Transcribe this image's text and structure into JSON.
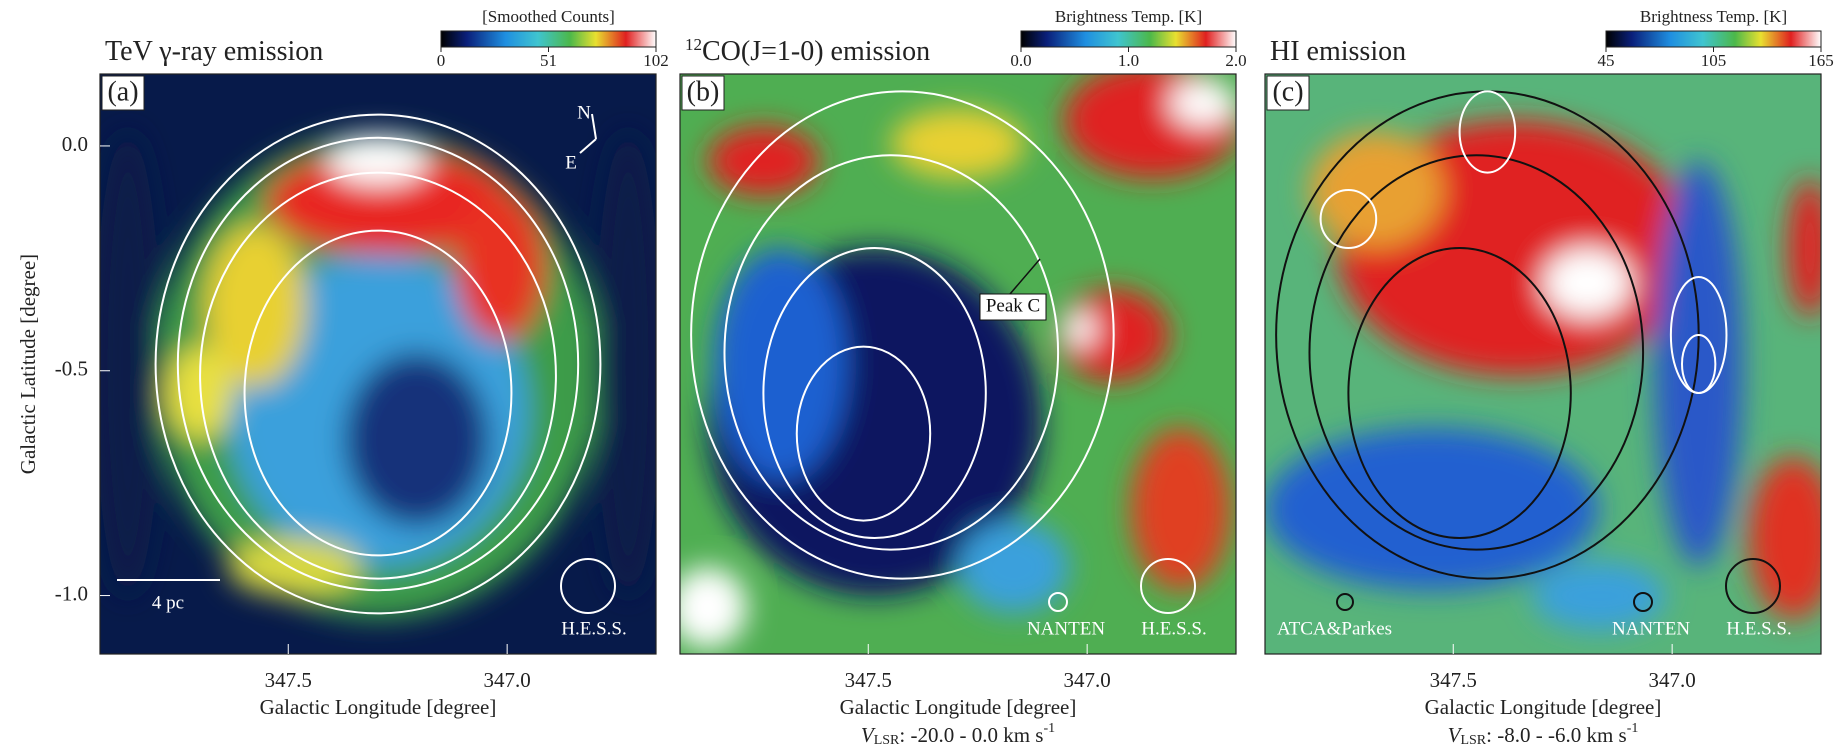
{
  "chart_data": [
    {
      "type": "map",
      "panel_label": "(a)",
      "title": "TeV γ-ray emission",
      "colorbar_label": "[Smoothed Counts]",
      "colorbar_lim": [
        0,
        102
      ],
      "colorbar_ticks": [
        0,
        51,
        102
      ],
      "xlim": [
        347.93,
        346.66
      ],
      "ylim": [
        -1.13,
        0.16
      ],
      "xticks": [
        347.5,
        {
          "value": 347,
          "label": "347.0"
        }
      ],
      "yticks": [
        {
          "value": 0,
          "label": "0.0"
        },
        -0.5,
        {
          "value": -1,
          "label": "-1.0"
        }
      ],
      "x_label": "Galactic Longitude [degree]",
      "y_label": "Galactic Latitude [degree]",
      "annotations": {
        "compass_n": "N",
        "compass_e": "E",
        "scale_bar": "4 pc",
        "beam": "H.E.S.S."
      }
    },
    {
      "type": "map",
      "panel_label": "(b)",
      "title_superscript": "12",
      "title": "CO(J=1-0) emission",
      "colorbar_label": "Brightness Temp. [K]",
      "colorbar_lim": [
        0,
        2
      ],
      "colorbar_ticks": [
        {
          "value": 0,
          "label": "0.0"
        },
        {
          "value": 1,
          "label": "1.0"
        },
        {
          "value": 2,
          "label": "2.0"
        }
      ],
      "xlim": [
        347.93,
        346.66
      ],
      "ylim": [
        -1.13,
        0.16
      ],
      "xticks": [
        347.5,
        {
          "value": 347,
          "label": "347.0"
        }
      ],
      "x_label": "Galactic Longitude [degree]",
      "velocity": {
        "symbol": "V",
        "subscript": "LSR",
        "range": ": -20.0 - 0.0 km s",
        "exponent": "-1"
      },
      "annotations": {
        "peak": "Peak C",
        "beam_survey": "NANTEN",
        "beam": "H.E.S.S."
      }
    },
    {
      "type": "map",
      "panel_label": "(c)",
      "title": "HI emission",
      "colorbar_label": "Brightness Temp. [K]",
      "colorbar_lim": [
        45,
        165
      ],
      "colorbar_ticks": [
        45,
        105,
        165
      ],
      "xlim": [
        347.93,
        346.66
      ],
      "ylim": [
        -1.13,
        0.16
      ],
      "xticks": [
        347.5,
        {
          "value": 347,
          "label": "347.0"
        }
      ],
      "x_label": "Galactic Longitude [degree]",
      "velocity": {
        "symbol": "V",
        "subscript": "LSR",
        "range": ": -8.0 - -6.0 km s",
        "exponent": "-1"
      },
      "annotations": {
        "beam_hi": "ATCA&Parkes",
        "beam_survey": "NANTEN",
        "beam": "H.E.S.S."
      }
    }
  ]
}
